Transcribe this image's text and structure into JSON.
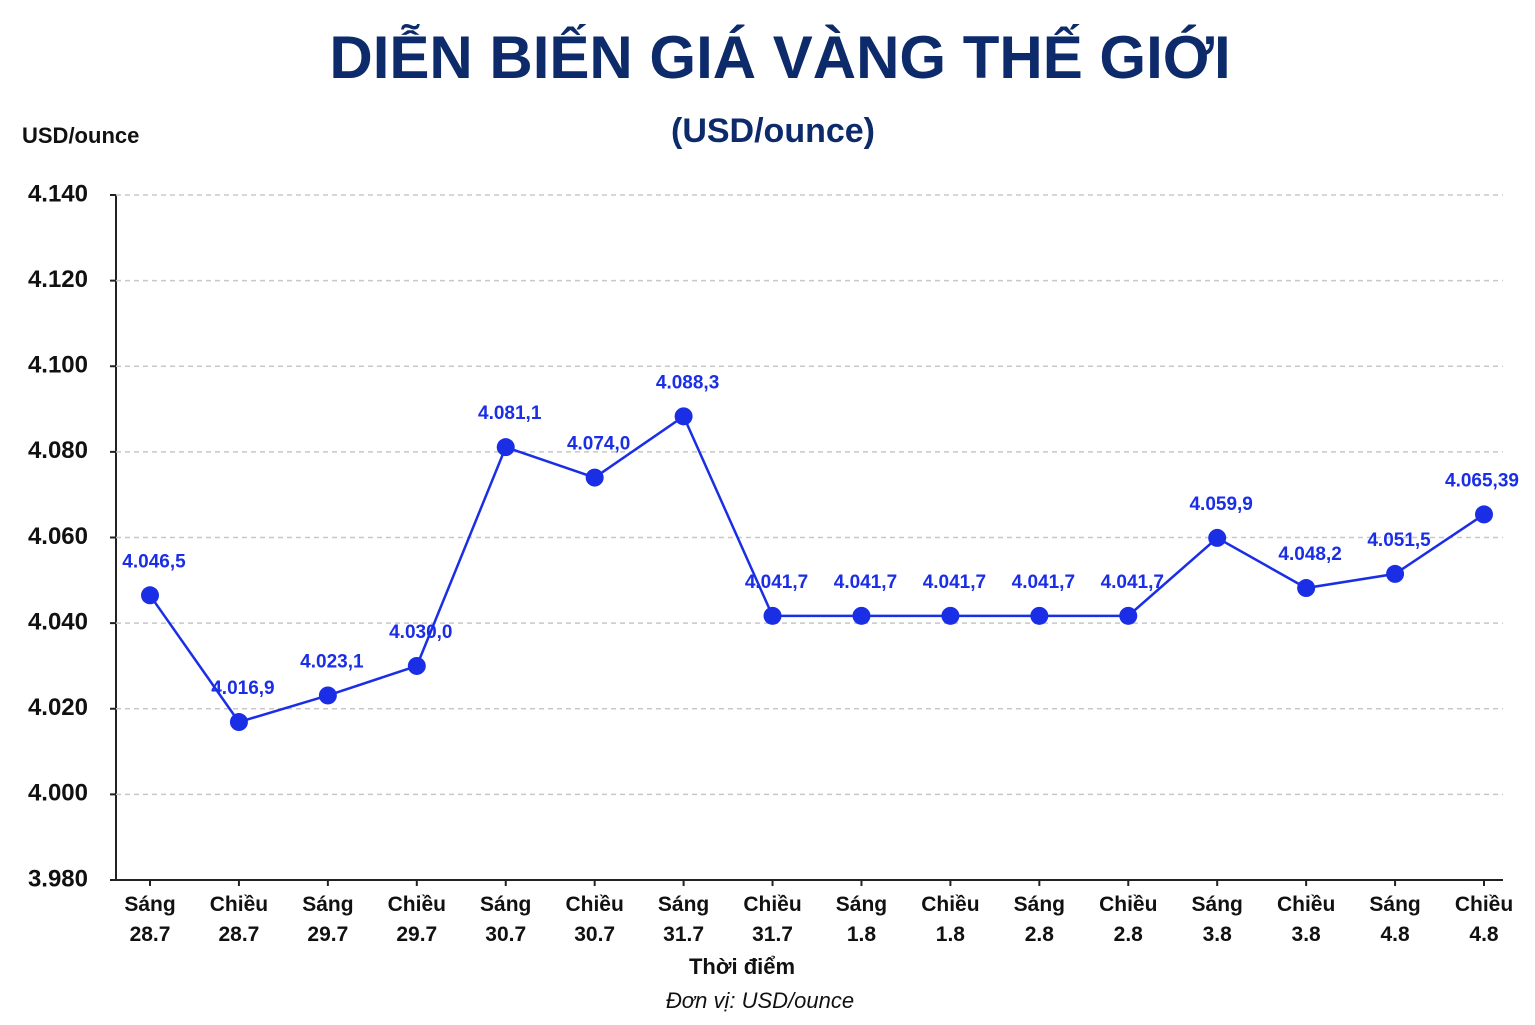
{
  "chart_data": {
    "type": "line",
    "title": "DIỄN BIẾN GIÁ VÀNG THẾ GIỚI",
    "subtitle": "(USD/ounce)",
    "y_label": "USD/ounce",
    "x_label": "Thời điểm",
    "footnote": "Đơn vị: USD/ounce",
    "categories": [
      "Sáng\n28.7",
      "Chiều\n28.7",
      "Sáng\n29.7",
      "Chiều\n29.7",
      "Sáng\n30.7",
      "Chiều\n30.7",
      "Sáng\n31.7",
      "Chiều\n31.7",
      "Sáng\n1.8",
      "Chiều\n1.8",
      "Sáng\n2.8",
      "Chiều\n2.8",
      "Sáng\n3.8",
      "Chiều\n3.8",
      "Sáng\n4.8",
      "Chiều\n4.8"
    ],
    "values": [
      4046.5,
      4016.9,
      4023.1,
      4030.0,
      4081.1,
      4074.0,
      4088.3,
      4041.7,
      4041.7,
      4041.7,
      4041.7,
      4041.7,
      4059.9,
      4048.2,
      4051.5,
      4065.39
    ],
    "value_labels": [
      "4.046,5",
      "4.016,9",
      "4.023,1",
      "4.030,0",
      "4.081,1",
      "4.074,0",
      "4.088,3",
      "4.041,7",
      "4.041,7",
      "4.041,7",
      "4.041,7",
      "4.041,7",
      "4.059,9",
      "4.048,2",
      "4.051,5",
      "4.065,39"
    ],
    "color": "#1a2ee6",
    "ylim": [
      3980,
      4140
    ],
    "yticks": [
      {
        "value": 3980,
        "label": "3.980"
      },
      {
        "value": 4000,
        "label": "4.000"
      },
      {
        "value": 4020,
        "label": "4.020"
      },
      {
        "value": 4040,
        "label": "4.040"
      },
      {
        "value": 4060,
        "label": "4.060"
      },
      {
        "value": 4080,
        "label": "4.080"
      },
      {
        "value": 4100,
        "label": "4.100"
      },
      {
        "value": 4120,
        "label": "4.120"
      },
      {
        "value": 4140,
        "label": "4.140"
      }
    ],
    "grid": true
  }
}
